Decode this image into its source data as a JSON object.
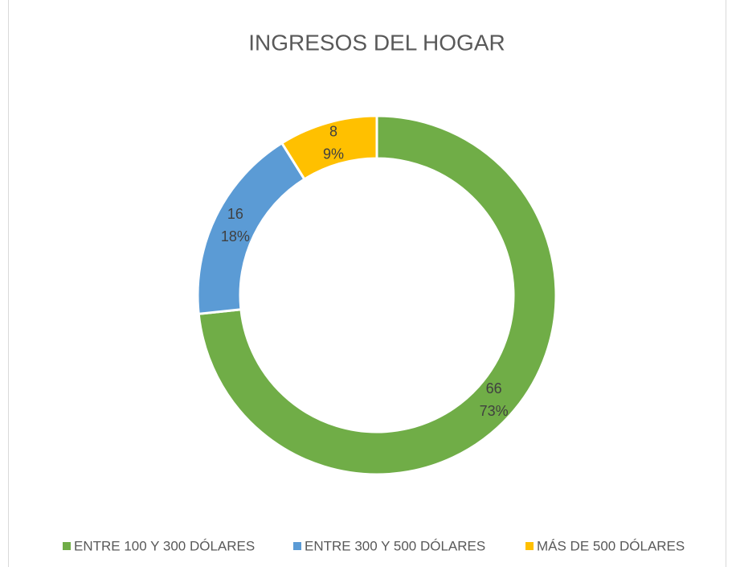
{
  "chart_data": {
    "type": "donut",
    "title": "INGRESOS DEL HOGAR",
    "categories": [
      "ENTRE 100 Y 300 DÓLARES",
      "ENTRE 300 Y 500 DÓLARES",
      "MÁS DE 500 DÓLARES"
    ],
    "values": [
      66,
      16,
      8
    ],
    "percent_labels": [
      "73%",
      "18%",
      "9%"
    ],
    "colors": [
      "#70ad47",
      "#5b9bd5",
      "#ffc000"
    ],
    "legend": "bottom"
  }
}
